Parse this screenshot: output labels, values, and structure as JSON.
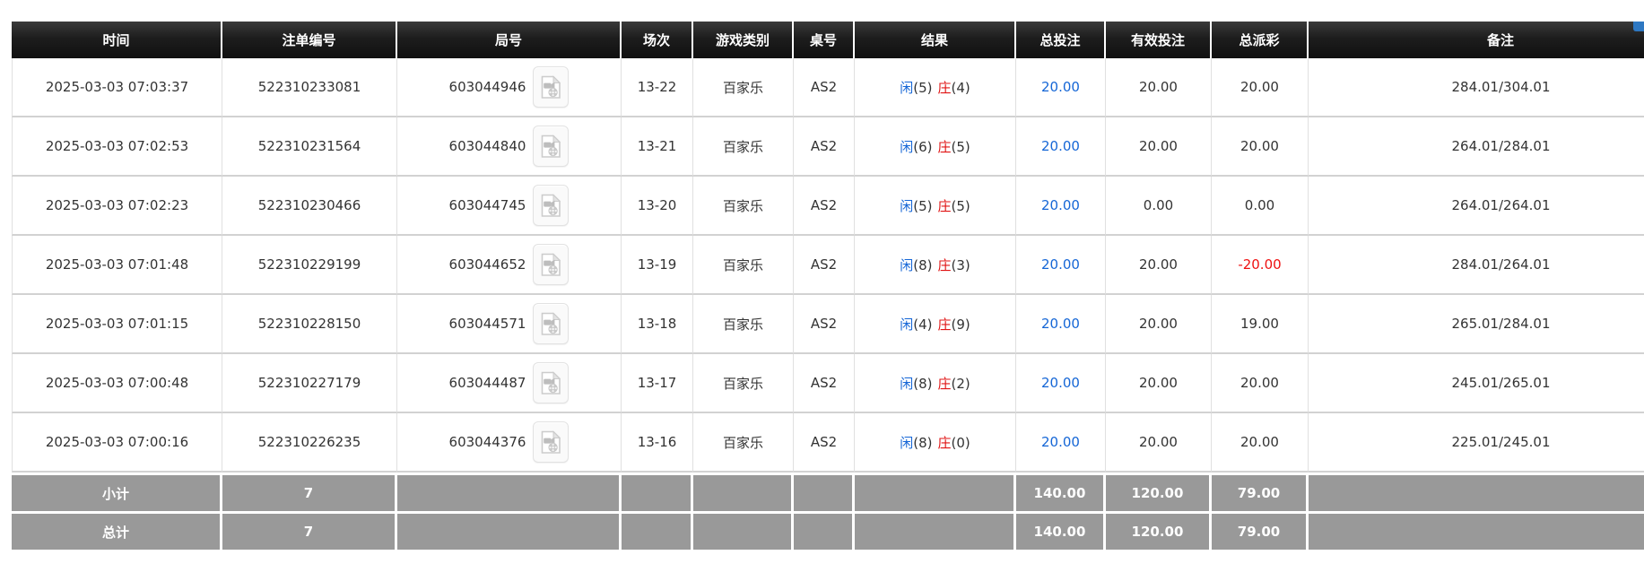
{
  "page": {
    "corner_chip_color": "#2e78c2",
    "colors": {
      "header_bg": "#1d1d1d",
      "summary_bg": "#999999",
      "player_blue": "#1566d6",
      "banker_red": "#e01414",
      "bet_link_blue": "#1566d6",
      "negative_red": "#ee1111",
      "body_text": "#333333"
    }
  },
  "table": {
    "columns": [
      "时间",
      "注单编号",
      "局号",
      "场次",
      "游戏类别",
      "桌号",
      "结果",
      "总投注",
      "有效投注",
      "总派彩",
      "备注"
    ],
    "video_icon_name": "video-file-icon",
    "rows": [
      {
        "time": "2025-03-03 07:03:37",
        "bet_no": "522310233081",
        "game_no": "603044946",
        "session": "13-22",
        "game_type": "百家乐",
        "table_no": "AS2",
        "result": {
          "player_label": "闲",
          "player_score": "(5)",
          "banker_label": "庄",
          "banker_score": "(4)"
        },
        "total_bet": "20.00",
        "valid_bet": "20.00",
        "payout": "20.00",
        "remark": "284.01/304.01"
      },
      {
        "time": "2025-03-03 07:02:53",
        "bet_no": "522310231564",
        "game_no": "603044840",
        "session": "13-21",
        "game_type": "百家乐",
        "table_no": "AS2",
        "result": {
          "player_label": "闲",
          "player_score": "(6)",
          "banker_label": "庄",
          "banker_score": "(5)"
        },
        "total_bet": "20.00",
        "valid_bet": "20.00",
        "payout": "20.00",
        "remark": "264.01/284.01"
      },
      {
        "time": "2025-03-03 07:02:23",
        "bet_no": "522310230466",
        "game_no": "603044745",
        "session": "13-20",
        "game_type": "百家乐",
        "table_no": "AS2",
        "result": {
          "player_label": "闲",
          "player_score": "(5)",
          "banker_label": "庄",
          "banker_score": "(5)"
        },
        "total_bet": "20.00",
        "valid_bet": "0.00",
        "payout": "0.00",
        "remark": "264.01/264.01"
      },
      {
        "time": "2025-03-03 07:01:48",
        "bet_no": "522310229199",
        "game_no": "603044652",
        "session": "13-19",
        "game_type": "百家乐",
        "table_no": "AS2",
        "result": {
          "player_label": "闲",
          "player_score": "(8)",
          "banker_label": "庄",
          "banker_score": "(3)"
        },
        "total_bet": "20.00",
        "valid_bet": "20.00",
        "payout": "-20.00",
        "remark": "284.01/264.01"
      },
      {
        "time": "2025-03-03 07:01:15",
        "bet_no": "522310228150",
        "game_no": "603044571",
        "session": "13-18",
        "game_type": "百家乐",
        "table_no": "AS2",
        "result": {
          "player_label": "闲",
          "player_score": "(4)",
          "banker_label": "庄",
          "banker_score": "(9)"
        },
        "total_bet": "20.00",
        "valid_bet": "20.00",
        "payout": "19.00",
        "remark": "265.01/284.01"
      },
      {
        "time": "2025-03-03 07:00:48",
        "bet_no": "522310227179",
        "game_no": "603044487",
        "session": "13-17",
        "game_type": "百家乐",
        "table_no": "AS2",
        "result": {
          "player_label": "闲",
          "player_score": "(8)",
          "banker_label": "庄",
          "banker_score": "(2)"
        },
        "total_bet": "20.00",
        "valid_bet": "20.00",
        "payout": "20.00",
        "remark": "245.01/265.01"
      },
      {
        "time": "2025-03-03 07:00:16",
        "bet_no": "522310226235",
        "game_no": "603044376",
        "session": "13-16",
        "game_type": "百家乐",
        "table_no": "AS2",
        "result": {
          "player_label": "闲",
          "player_score": "(8)",
          "banker_label": "庄",
          "banker_score": "(0)"
        },
        "total_bet": "20.00",
        "valid_bet": "20.00",
        "payout": "20.00",
        "remark": "225.01/245.01"
      }
    ],
    "summary_rows": [
      {
        "label": "小计",
        "count": "7",
        "total_bet": "140.00",
        "valid_bet": "120.00",
        "payout": "79.00",
        "remark": ""
      },
      {
        "label": "总计",
        "count": "7",
        "total_bet": "140.00",
        "valid_bet": "120.00",
        "payout": "79.00",
        "remark": ""
      }
    ]
  }
}
